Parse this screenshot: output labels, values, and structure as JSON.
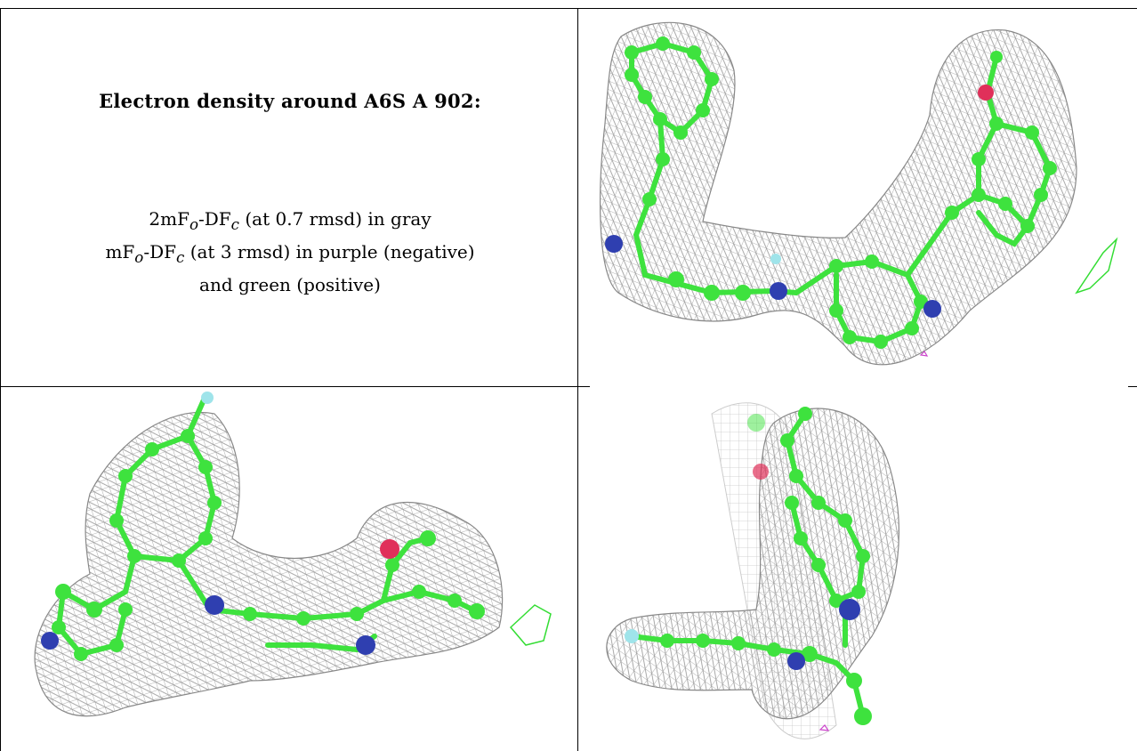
{
  "panel": {
    "heading": "Electron density around A6S A 902:",
    "lines": [
      {
        "pre": "2mF",
        "sub1": "o",
        "mid": "-DF",
        "sub2": "c",
        "post": " (at 0.7 rmsd) in gray"
      },
      {
        "pre": "mF",
        "sub1": "o",
        "mid": "-DF",
        "sub2": "c",
        "post": " (at 3 rmsd) in purple (negative)"
      },
      {
        "pre": "and green (positive)",
        "sub1": "",
        "mid": "",
        "sub2": "",
        "post": ""
      }
    ]
  },
  "colors": {
    "carbon": "#3ee23e",
    "nitrogen": "#2f3fb0",
    "oxygen": "#e0305a",
    "fluorine": "#9fe4ea",
    "mesh_gray": "#9a9a9a",
    "positive_density": "#33dd33",
    "negative_density": "#cc44cc"
  },
  "views": [
    {
      "name": "view-top-right",
      "description_icon": "molecule-density-icon"
    },
    {
      "name": "view-bottom-left",
      "description_icon": "molecule-density-icon"
    },
    {
      "name": "view-bottom-right",
      "description_icon": "molecule-density-icon"
    }
  ]
}
